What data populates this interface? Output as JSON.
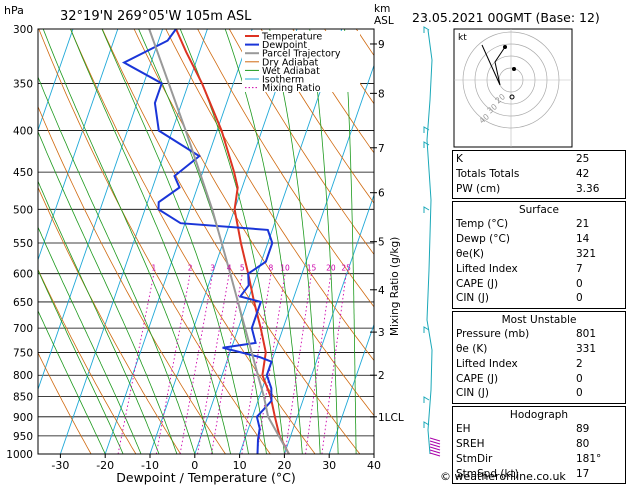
{
  "header": {
    "location": "32°19'N 269°05'W 105m ASL",
    "date": "23.05.2021 00GMT (Base: 12)",
    "footer": "© weatheronline.co.uk"
  },
  "colors": {
    "temperature": "#dd3322",
    "dewpoint": "#1a35d8",
    "parcel": "#999999",
    "dry_adiabat": "#d06a10",
    "wet_adiabat": "#1e9a1e",
    "isotherm": "#20a9d8",
    "mixing_ratio": "#cc00aa"
  },
  "indices": {
    "rows": [
      {
        "label": "K",
        "value": "25"
      },
      {
        "label": "Totals Totals",
        "value": "42"
      },
      {
        "label": "PW (cm)",
        "value": "3.36"
      }
    ]
  },
  "surface": {
    "title": "Surface",
    "rows": [
      {
        "label": "Temp (°C)",
        "value": "21"
      },
      {
        "label": "Dewp (°C)",
        "value": "14"
      },
      {
        "label": "θe(K)",
        "value": "321"
      },
      {
        "label": "Lifted Index",
        "value": "7"
      },
      {
        "label": "CAPE (J)",
        "value": "0"
      },
      {
        "label": "CIN (J)",
        "value": "0"
      }
    ]
  },
  "unstable": {
    "title": "Most Unstable",
    "rows": [
      {
        "label": "Pressure (mb)",
        "value": "801"
      },
      {
        "label": "θe (K)",
        "value": "331"
      },
      {
        "label": "Lifted Index",
        "value": "2"
      },
      {
        "label": "CAPE (J)",
        "value": "0"
      },
      {
        "label": "CIN (J)",
        "value": "0"
      }
    ]
  },
  "hodograph": {
    "title": "Hodograph",
    "label": "kt",
    "rings": [
      "20",
      "30",
      "40"
    ],
    "rows": [
      {
        "label": "EH",
        "value": "89"
      },
      {
        "label": "SREH",
        "value": "80"
      },
      {
        "label": "StmDir",
        "value": "181°"
      },
      {
        "label": "StmSpd (kt)",
        "value": "17"
      }
    ]
  },
  "chart_data": {
    "type": "line",
    "xlabel": "Dewpoint / Temperature (°C)",
    "ylabel_left": "hPa",
    "ylabel_right_top": "km",
    "ylabel_right_bottom": "ASL",
    "mixing_ratio_label": "Mixing Ratio (g/kg)",
    "xlim": [
      -35,
      40
    ],
    "ylim": [
      1000,
      300
    ],
    "x_ticks": [
      -30,
      -20,
      -10,
      0,
      10,
      20,
      30,
      40
    ],
    "pressure_levels": [
      300,
      350,
      400,
      450,
      500,
      550,
      600,
      650,
      700,
      750,
      800,
      850,
      900,
      950,
      1000
    ],
    "km_ticks": [
      {
        "label": "9",
        "p": 313
      },
      {
        "label": "8",
        "p": 360
      },
      {
        "label": "7",
        "p": 420
      },
      {
        "label": "6",
        "p": 477
      },
      {
        "label": "5",
        "p": 548
      },
      {
        "label": "4",
        "p": 628
      },
      {
        "label": "3",
        "p": 708
      },
      {
        "label": "2",
        "p": 800
      },
      {
        "label": "1LCL",
        "p": 900
      }
    ],
    "mixing_ratio_values": [
      "1",
      "2",
      "3",
      "4",
      "5",
      "8",
      "10",
      "15",
      "20",
      "25"
    ],
    "legend": [
      "Temperature",
      "Dewpoint",
      "Parcel Trajectory",
      "Dry Adiabat",
      "Wet Adiabat",
      "Isotherm",
      "Mixing Ratio"
    ],
    "series": [
      {
        "name": "Temperature",
        "points": [
          [
            1000,
            21
          ],
          [
            950,
            17.5
          ],
          [
            900,
            15
          ],
          [
            850,
            12.5
          ],
          [
            800,
            9
          ],
          [
            750,
            8
          ],
          [
            700,
            5
          ],
          [
            650,
            1.5
          ],
          [
            600,
            -2
          ],
          [
            550,
            -6
          ],
          [
            500,
            -10
          ],
          [
            470,
            -11
          ],
          [
            450,
            -13
          ],
          [
            400,
            -19
          ],
          [
            350,
            -27
          ],
          [
            320,
            -33
          ],
          [
            300,
            -37
          ]
        ]
      },
      {
        "name": "Dewpoint",
        "points": [
          [
            1000,
            14
          ],
          [
            960,
            13
          ],
          [
            930,
            12.5
          ],
          [
            900,
            11
          ],
          [
            860,
            13
          ],
          [
            830,
            12
          ],
          [
            800,
            10
          ],
          [
            770,
            10
          ],
          [
            760,
            7
          ],
          [
            740,
            -2
          ],
          [
            730,
            5
          ],
          [
            700,
            3
          ],
          [
            650,
            3
          ],
          [
            640,
            -2
          ],
          [
            620,
            -1
          ],
          [
            600,
            -2
          ],
          [
            580,
            1
          ],
          [
            550,
            1
          ],
          [
            530,
            -1
          ],
          [
            520,
            -21
          ],
          [
            500,
            -27
          ],
          [
            490,
            -27.5
          ],
          [
            470,
            -24
          ],
          [
            455,
            -26
          ],
          [
            430,
            -22
          ],
          [
            400,
            -33
          ],
          [
            370,
            -36
          ],
          [
            350,
            -36
          ],
          [
            330,
            -46
          ],
          [
            310,
            -38
          ],
          [
            300,
            -37
          ]
        ]
      },
      {
        "name": "Parcel Trajectory",
        "points": [
          [
            1000,
            21
          ],
          [
            900,
            13.5
          ],
          [
            850,
            11
          ],
          [
            800,
            8
          ],
          [
            700,
            1.5
          ],
          [
            600,
            -6
          ],
          [
            500,
            -15
          ],
          [
            400,
            -27
          ],
          [
            300,
            -43
          ]
        ]
      }
    ]
  }
}
